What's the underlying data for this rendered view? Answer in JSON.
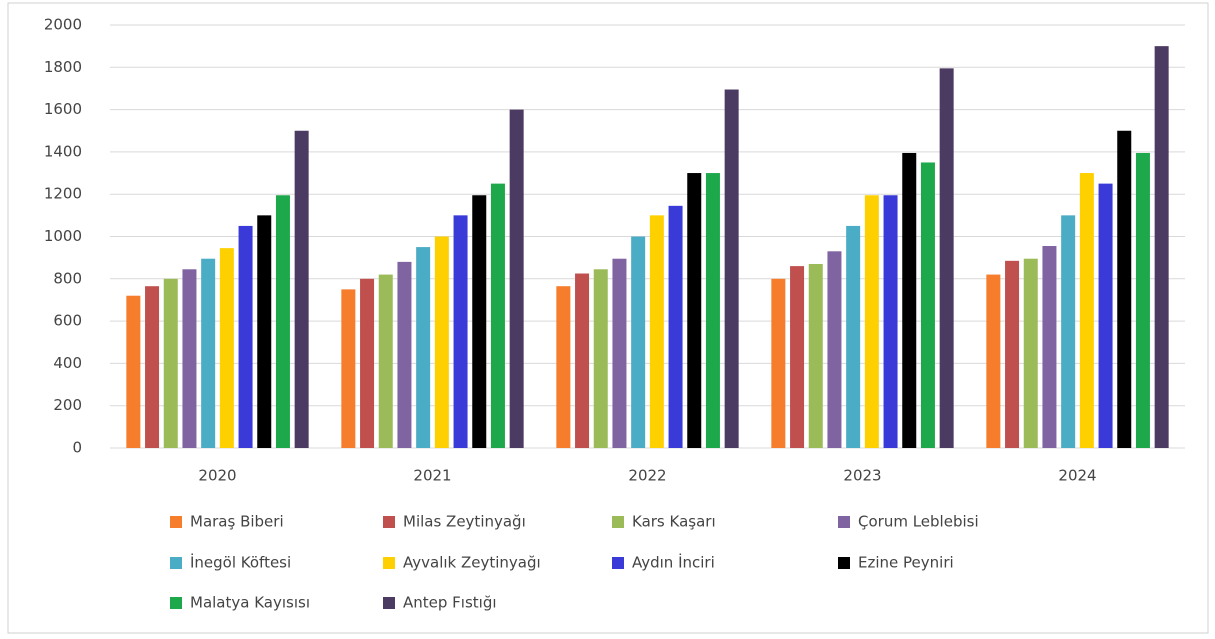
{
  "chart_data": {
    "type": "bar",
    "categories": [
      "2020",
      "2021",
      "2022",
      "2023",
      "2024"
    ],
    "series": [
      {
        "name": "Maraş Biberi",
        "color": "#f57d2b",
        "values": [
          720,
          750,
          765,
          800,
          820
        ]
      },
      {
        "name": "Milas Zeytinyağı",
        "color": "#c0504d",
        "values": [
          765,
          800,
          825,
          860,
          885
        ]
      },
      {
        "name": "Kars Kaşarı",
        "color": "#9bbb59",
        "values": [
          800,
          820,
          845,
          870,
          895
        ]
      },
      {
        "name": "Çorum Leblebisi",
        "color": "#8064a2",
        "values": [
          845,
          880,
          895,
          930,
          955
        ]
      },
      {
        "name": "İnegöl Köftesi",
        "color": "#4bacc6",
        "values": [
          895,
          950,
          1000,
          1050,
          1100
        ]
      },
      {
        "name": "Ayvalık Zeytinyağı",
        "color": "#ffd000",
        "values": [
          945,
          1000,
          1100,
          1195,
          1300
        ]
      },
      {
        "name": "Aydın İnciri",
        "color": "#3a3ad8",
        "values": [
          1050,
          1100,
          1145,
          1195,
          1250
        ]
      },
      {
        "name": "Ezine Peyniri",
        "color": "#000000",
        "values": [
          1100,
          1195,
          1300,
          1395,
          1500
        ]
      },
      {
        "name": "Malatya Kayısısı",
        "color": "#1da84b",
        "values": [
          1195,
          1250,
          1300,
          1350,
          1395
        ]
      },
      {
        "name": "Antep Fıstığı",
        "color": "#4b3a62",
        "values": [
          1500,
          1600,
          1695,
          1795,
          1900
        ]
      }
    ],
    "ylim": [
      0,
      2000
    ],
    "yticks": [
      0,
      200,
      400,
      600,
      800,
      1000,
      1200,
      1400,
      1600,
      1800,
      2000
    ],
    "grid": true,
    "legend": "bottom"
  }
}
